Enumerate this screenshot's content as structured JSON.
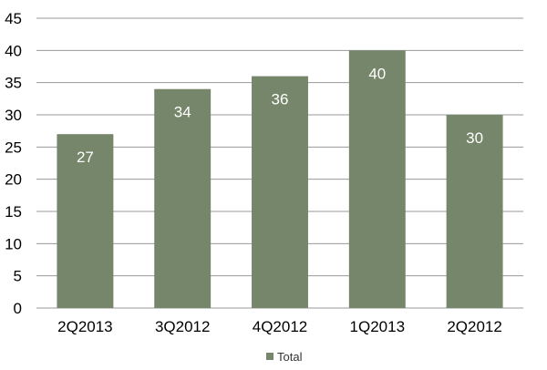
{
  "chart_data": {
    "type": "bar",
    "categories": [
      "2Q2013",
      "3Q2012",
      "4Q2012",
      "1Q2013",
      "2Q2012"
    ],
    "series": [
      {
        "name": "Total",
        "values": [
          27,
          34,
          36,
          40,
          30
        ]
      }
    ],
    "title": "",
    "xlabel": "",
    "ylabel": "",
    "ylim": [
      0,
      45
    ],
    "yticks": [
      0,
      5,
      10,
      15,
      20,
      25,
      30,
      35,
      40,
      45
    ],
    "grid": true,
    "legend_position": "bottom",
    "data_labels": true,
    "colors": {
      "bar": "#75866a",
      "grid": "#9a9a9a",
      "data_label": "#ffffff",
      "text": "#000000"
    }
  }
}
